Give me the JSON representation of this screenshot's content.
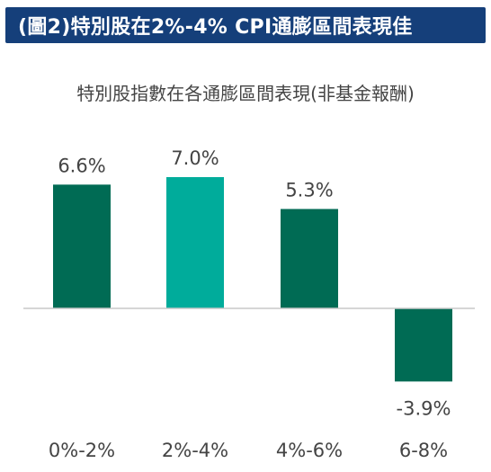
{
  "banner": {
    "title": "(圖2)特別股在2%-4% CPI通膨區間表現佳"
  },
  "chart_data": {
    "type": "bar",
    "title": "特別股指數在各通膨區間表現(非基金報酬)",
    "categories": [
      "0%-2%",
      "2%-4%",
      "4%-6%",
      "6-8%"
    ],
    "values": [
      6.6,
      7.0,
      5.3,
      -3.9
    ],
    "value_labels": [
      "6.6%",
      "7.0%",
      "5.3%",
      "-3.9%"
    ],
    "unit": "%",
    "ylim": [
      -3.9,
      7.0
    ],
    "xlabel": "",
    "ylabel": "",
    "grid": false,
    "highlight_index": 1,
    "colors": {
      "bar": "#006b54",
      "highlight": "#00ac9b",
      "baseline": "#c9c9c9"
    }
  },
  "colors": {
    "banner_bg": "#153f7a",
    "banner_text": "#ffffff",
    "text": "#444444"
  }
}
